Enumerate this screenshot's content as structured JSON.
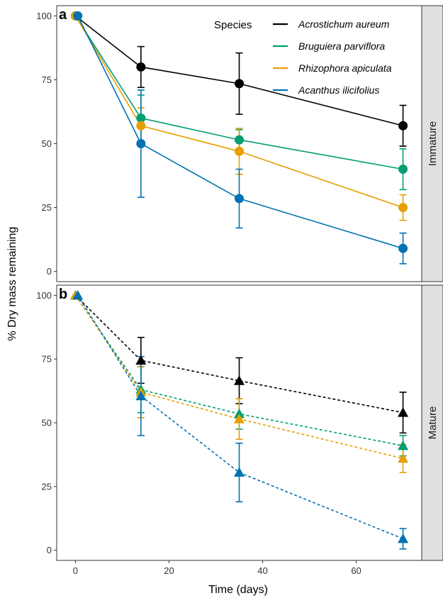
{
  "chart_data": {
    "type": "line",
    "xlabel": "Time (days)",
    "ylabel": "% Dry mass remaining",
    "xlim": [
      -4,
      74
    ],
    "ylim": [
      -4,
      104
    ],
    "x_ticks": [
      0,
      20,
      40,
      60
    ],
    "y_ticks": [
      0,
      25,
      50,
      75,
      100
    ],
    "grid": false,
    "legend": {
      "title": "Species",
      "placement": "top-right"
    },
    "series": [
      {
        "name": "Acrostichum aureum",
        "color": "#000000"
      },
      {
        "name": "Bruguiera parviflora",
        "color": "#009E73"
      },
      {
        "name": "Rhizophora apiculata",
        "color": "#E69F00"
      },
      {
        "name": "Acanthus ilicifolius",
        "color": "#0072B2"
      }
    ],
    "panels": [
      {
        "tag": "a",
        "strip_label": "Immature",
        "marker": "circle",
        "linestyle": "solid",
        "series": [
          {
            "name": "Acrostichum aureum",
            "points": [
              {
                "x": 0,
                "y": 100,
                "err": 0
              },
              {
                "x": 14,
                "y": 80,
                "err": 8
              },
              {
                "x": 35,
                "y": 73.5,
                "err": 12
              },
              {
                "x": 70,
                "y": 57,
                "err": 8
              }
            ]
          },
          {
            "name": "Bruguiera parviflora",
            "points": [
              {
                "x": 0,
                "y": 100,
                "err": 0
              },
              {
                "x": 14,
                "y": 60,
                "err": 9
              },
              {
                "x": 35,
                "y": 51.5,
                "err": 4
              },
              {
                "x": 70,
                "y": 40,
                "err": 8
              }
            ]
          },
          {
            "name": "Rhizophora apiculata",
            "points": [
              {
                "x": 0,
                "y": 100,
                "err": 0
              },
              {
                "x": 14,
                "y": 57,
                "err": 7
              },
              {
                "x": 35,
                "y": 47,
                "err": 9
              },
              {
                "x": 70,
                "y": 25,
                "err": 5
              }
            ]
          },
          {
            "name": "Acanthus ilicifolius",
            "points": [
              {
                "x": 0.5,
                "y": 100,
                "err": 0
              },
              {
                "x": 14,
                "y": 50,
                "err": 21
              },
              {
                "x": 35,
                "y": 28.5,
                "err": 11.5
              },
              {
                "x": 70,
                "y": 9,
                "err": 6
              }
            ]
          }
        ]
      },
      {
        "tag": "b",
        "strip_label": "Mature",
        "marker": "triangle",
        "linestyle": "dashed",
        "series": [
          {
            "name": "Acrostichum aureum",
            "points": [
              {
                "x": 0,
                "y": 100,
                "err": 0
              },
              {
                "x": 14,
                "y": 74.5,
                "err": 9
              },
              {
                "x": 35,
                "y": 66.5,
                "err": 9
              },
              {
                "x": 70,
                "y": 54,
                "err": 8
              }
            ]
          },
          {
            "name": "Bruguiera parviflora",
            "points": [
              {
                "x": 0,
                "y": 100,
                "err": 0
              },
              {
                "x": 14,
                "y": 63,
                "err": 9
              },
              {
                "x": 35,
                "y": 53.5,
                "err": 6
              },
              {
                "x": 70,
                "y": 41,
                "err": 4
              }
            ]
          },
          {
            "name": "Rhizophora apiculata",
            "points": [
              {
                "x": 0,
                "y": 100,
                "err": 0
              },
              {
                "x": 14,
                "y": 62,
                "err": 10
              },
              {
                "x": 35,
                "y": 51.5,
                "err": 8
              },
              {
                "x": 70,
                "y": 36,
                "err": 5.5
              }
            ]
          },
          {
            "name": "Acanthus ilicifolius",
            "points": [
              {
                "x": 0.5,
                "y": 100,
                "err": 0
              },
              {
                "x": 14,
                "y": 60.5,
                "err": 15.5
              },
              {
                "x": 35,
                "y": 30.5,
                "err": 11.5
              },
              {
                "x": 70,
                "y": 4.5,
                "err": 4
              }
            ]
          }
        ]
      }
    ]
  }
}
